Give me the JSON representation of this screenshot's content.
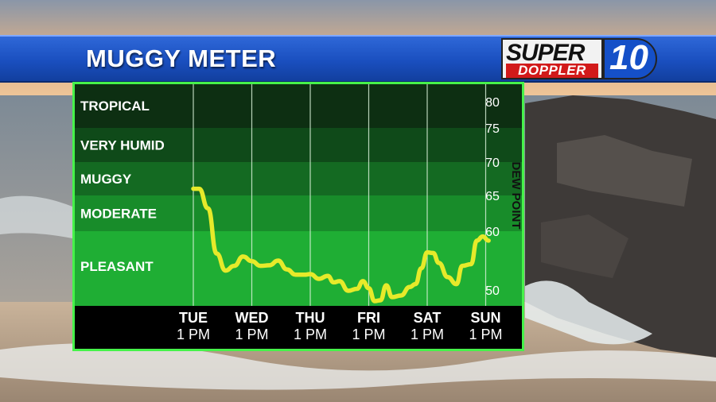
{
  "header": {
    "title": "MUGGY METER",
    "logo_top": "SUPER",
    "logo_bottom": "DOPPLER",
    "logo_number": "10"
  },
  "colors": {
    "title_bar": "#1a4fbf",
    "band_tropical": "#0d2f12",
    "band_very_humid": "#0f4a19",
    "band_muggy": "#146a22",
    "band_moderate": "#188c2a",
    "band_pleasant": "#1fae34",
    "line": "#e6ea2a",
    "border": "#46f24a",
    "x_strip": "#000000"
  },
  "chart_data": {
    "type": "line",
    "title": "MUGGY METER",
    "ylabel": "DEW POINT",
    "ylim": [
      48,
      82
    ],
    "yticks": [
      50,
      60,
      65,
      70,
      75,
      80
    ],
    "categories": [
      {
        "day": "TUE",
        "time": "1 PM"
      },
      {
        "day": "WED",
        "time": "1 PM"
      },
      {
        "day": "THU",
        "time": "1 PM"
      },
      {
        "day": "FRI",
        "time": "1 PM"
      },
      {
        "day": "SAT",
        "time": "1 PM"
      },
      {
        "day": "SUN",
        "time": "1 PM"
      }
    ],
    "bands": [
      {
        "label": "TROPICAL",
        "from": 75,
        "to": 82
      },
      {
        "label": "VERY HUMID",
        "from": 70,
        "to": 75
      },
      {
        "label": "MUGGY",
        "from": 65,
        "to": 70
      },
      {
        "label": "MODERATE",
        "from": 60,
        "to": 65
      },
      {
        "label": "PLEASANT",
        "from": 48,
        "to": 60
      }
    ],
    "series": [
      {
        "x": [
          0,
          0.1,
          0.25,
          0.4,
          0.55,
          0.7,
          0.85,
          1.0,
          1.15,
          1.3,
          1.45,
          1.6,
          1.75,
          1.9,
          2.0,
          2.15,
          2.3,
          2.4,
          2.5,
          2.65,
          2.8,
          2.9,
          3.0,
          3.1,
          3.2,
          3.3,
          3.4,
          3.55,
          3.7,
          3.8,
          3.9,
          4.0,
          4.1,
          4.2,
          4.35,
          4.5,
          4.6,
          4.75,
          4.85,
          4.95,
          5.05
        ],
        "values": [
          66.0,
          66.0,
          63.2,
          56.2,
          53.3,
          54.1,
          55.7,
          54.9,
          54.1,
          54.2,
          55.0,
          53.5,
          52.6,
          52.6,
          52.7,
          51.9,
          52.4,
          51.3,
          51.5,
          49.9,
          50.2,
          51.5,
          50.3,
          48.6,
          48.7,
          50.8,
          49.1,
          49.3,
          50.5,
          51.0,
          53.7,
          56.4,
          56.3,
          54.6,
          52.2,
          51.0,
          54.1,
          54.4,
          58.4,
          59.1,
          58.4
        ]
      }
    ]
  }
}
